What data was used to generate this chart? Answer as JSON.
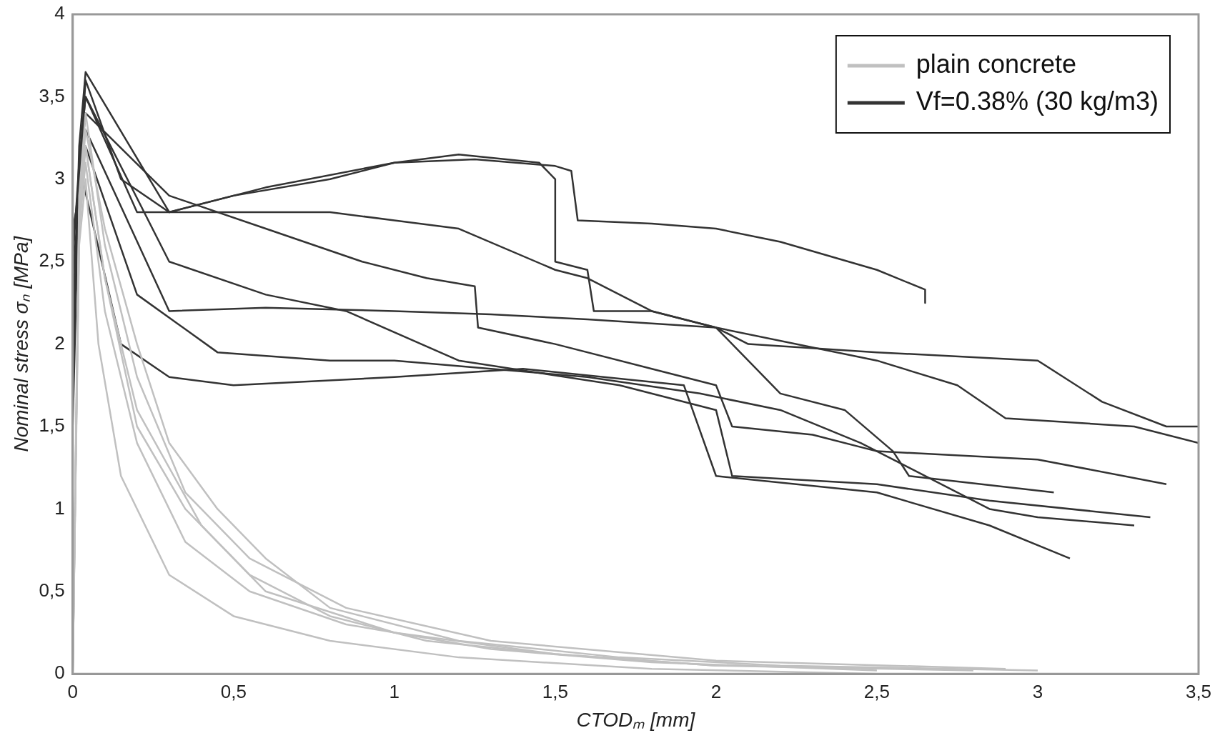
{
  "chart_data": {
    "type": "line",
    "xlabel": "CTODₘ [mm]",
    "ylabel": "Nominal stress σₙ [MPa]",
    "xlim": [
      0,
      3.5
    ],
    "ylim": [
      0,
      4
    ],
    "xticks": [
      0,
      {
        "value": 0.5,
        "label": "0,5"
      },
      1,
      {
        "value": 1.5,
        "label": "1,5"
      },
      2,
      {
        "value": 2.5,
        "label": "2,5"
      },
      3,
      {
        "value": 3.5,
        "label": "3,5"
      }
    ],
    "yticks": [
      0,
      {
        "value": 0.5,
        "label": "0,5"
      },
      1,
      {
        "value": 1.5,
        "label": "1,5"
      },
      2,
      {
        "value": 2.5,
        "label": "2,5"
      },
      3,
      {
        "value": 3.5,
        "label": "3,5"
      },
      4
    ],
    "grid": false,
    "legend": "top right",
    "marker": "none",
    "line_style": "solid",
    "series": [
      {
        "name": "plain concrete",
        "color": "#c0c0c0",
        "x": [
          0,
          0.02,
          0.04,
          0.1,
          0.2,
          0.3,
          0.45,
          0.6,
          0.8,
          1.2,
          1.7,
          2.2,
          3.0
        ],
        "values": [
          0,
          2.8,
          3.3,
          2.7,
          2.0,
          1.4,
          1.0,
          0.7,
          0.4,
          0.2,
          0.1,
          0.05,
          0.02
        ]
      },
      {
        "color": "#c0c0c0",
        "x": [
          0,
          0.02,
          0.04,
          0.1,
          0.2,
          0.35,
          0.55,
          0.8,
          1.1,
          1.5,
          2.0,
          2.8
        ],
        "values": [
          0,
          2.7,
          3.2,
          2.4,
          1.5,
          1.0,
          0.6,
          0.35,
          0.2,
          0.12,
          0.05,
          0.02
        ]
      },
      {
        "color": "#c0c0c0",
        "x": [
          0,
          0.02,
          0.04,
          0.08,
          0.15,
          0.3,
          0.5,
          0.8,
          1.2,
          1.8,
          2.5
        ],
        "values": [
          0,
          2.6,
          3.0,
          2.0,
          1.2,
          0.6,
          0.35,
          0.2,
          0.1,
          0.03,
          0
        ]
      },
      {
        "color": "#c0c0c0",
        "x": [
          0,
          0.02,
          0.04,
          0.1,
          0.2,
          0.35,
          0.55,
          0.85,
          1.3,
          1.8,
          2.5
        ],
        "values": [
          0,
          2.7,
          3.1,
          2.2,
          1.4,
          0.8,
          0.5,
          0.3,
          0.15,
          0.07,
          0.02
        ]
      },
      {
        "color": "#c0c0c0",
        "x": [
          0,
          0.02,
          0.04,
          0.1,
          0.2,
          0.35,
          0.55,
          0.85,
          1.3,
          2.0,
          2.9
        ],
        "values": [
          0,
          2.9,
          3.4,
          2.6,
          1.8,
          1.1,
          0.7,
          0.4,
          0.2,
          0.08,
          0.03
        ]
      },
      {
        "color": "#c0c0c0",
        "x": [
          0,
          0.02,
          0.04,
          0.1,
          0.2,
          0.4,
          0.6,
          1.0,
          1.5,
          2.0
        ],
        "values": [
          0,
          2.8,
          3.2,
          2.4,
          1.6,
          0.9,
          0.5,
          0.25,
          0.12,
          0.05
        ]
      },
      {
        "name": "Vf=0.38% (30 kg/m3)",
        "color": "#333333",
        "x": [
          0,
          0.02,
          0.04,
          0.15,
          0.3,
          0.5,
          0.8,
          1.0,
          1.25,
          1.5,
          1.55,
          1.57,
          1.8,
          2.0,
          2.2,
          2.5,
          2.65,
          2.65
        ],
        "values": [
          1.5,
          3.0,
          3.6,
          3.0,
          2.8,
          2.9,
          3.0,
          3.1,
          3.12,
          3.08,
          3.05,
          2.75,
          2.73,
          2.7,
          2.62,
          2.45,
          2.33,
          2.25
        ]
      },
      {
        "color": "#333333",
        "x": [
          0,
          0.02,
          0.04,
          0.3,
          0.6,
          1.0,
          1.2,
          1.45,
          1.5,
          1.5,
          1.6,
          1.62,
          1.8,
          2.0,
          2.1,
          2.5,
          3.0,
          3.2,
          3.4,
          3.5
        ],
        "values": [
          1.8,
          3.2,
          3.65,
          2.8,
          2.95,
          3.1,
          3.15,
          3.1,
          3.0,
          2.5,
          2.45,
          2.2,
          2.2,
          2.1,
          2.0,
          1.95,
          1.9,
          1.65,
          1.5,
          1.5
        ]
      },
      {
        "color": "#333333",
        "x": [
          0,
          0.02,
          0.04,
          0.2,
          0.5,
          0.8,
          1.0,
          1.2,
          1.5,
          1.6,
          1.8,
          2.0,
          2.5,
          2.75,
          2.9,
          3.3,
          3.5
        ],
        "values": [
          2.0,
          3.1,
          3.5,
          2.8,
          2.8,
          2.8,
          2.75,
          2.7,
          2.45,
          2.4,
          2.2,
          2.1,
          1.9,
          1.75,
          1.55,
          1.5,
          1.4
        ]
      },
      {
        "color": "#333333",
        "x": [
          0,
          0.02,
          0.04,
          0.3,
          0.6,
          0.9,
          1.1,
          1.25,
          1.26,
          1.5,
          1.8,
          2.0,
          2.05,
          2.3,
          2.5,
          3.0,
          3.4
        ],
        "values": [
          2.2,
          3.0,
          3.4,
          2.9,
          2.7,
          2.5,
          2.4,
          2.35,
          2.1,
          2.0,
          1.85,
          1.75,
          1.5,
          1.45,
          1.35,
          1.3,
          1.15
        ]
      },
      {
        "color": "#333333",
        "x": [
          0,
          0.02,
          0.04,
          0.3,
          0.6,
          0.85,
          1.2,
          1.7,
          2.0,
          2.05,
          2.5,
          2.85,
          3.35
        ],
        "values": [
          2.5,
          3.1,
          3.5,
          2.5,
          2.3,
          2.2,
          1.9,
          1.75,
          1.6,
          1.2,
          1.15,
          1.05,
          0.95
        ]
      },
      {
        "color": "#333333",
        "x": [
          0,
          0.02,
          0.04,
          0.3,
          0.6,
          1.0,
          1.3,
          1.6,
          2.0,
          2.2,
          2.4,
          2.55,
          2.6,
          3.05
        ],
        "values": [
          2.6,
          3.0,
          3.3,
          2.2,
          2.22,
          2.2,
          2.18,
          2.15,
          2.1,
          1.7,
          1.6,
          1.35,
          1.2,
          1.1
        ]
      },
      {
        "color": "#333333",
        "x": [
          0,
          0.02,
          0.04,
          0.2,
          0.45,
          0.8,
          1.0,
          1.3,
          1.6,
          1.95,
          2.2,
          2.45,
          2.6,
          2.85,
          3.0,
          3.3
        ],
        "values": [
          2.4,
          2.9,
          3.2,
          2.3,
          1.95,
          1.9,
          1.9,
          1.85,
          1.8,
          1.7,
          1.6,
          1.4,
          1.25,
          1.0,
          0.95,
          0.9
        ]
      },
      {
        "color": "#333333",
        "x": [
          0,
          0.02,
          0.03,
          0.15,
          0.3,
          0.5,
          1.0,
          1.4,
          1.9,
          2.0,
          2.5,
          2.85,
          3.1
        ],
        "values": [
          2.7,
          2.9,
          3.0,
          2.0,
          1.8,
          1.75,
          1.8,
          1.85,
          1.75,
          1.2,
          1.1,
          0.9,
          0.7
        ]
      }
    ]
  }
}
